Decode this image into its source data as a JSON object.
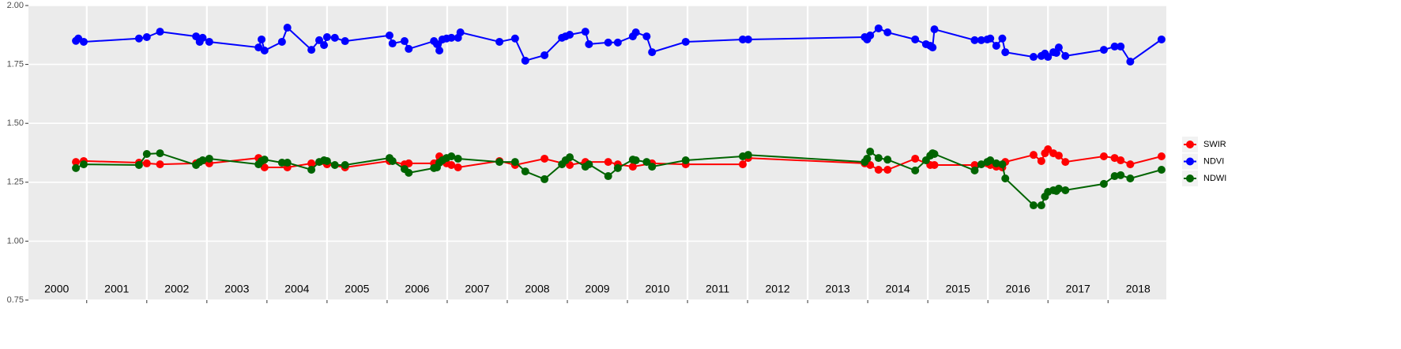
{
  "chart_data": {
    "type": "line",
    "xlim": [
      2000.03,
      2018.97
    ],
    "ylim": [
      0.75,
      2.0
    ],
    "yticks": [
      0.75,
      {
        "value": 1,
        "label": "1.00"
      },
      1.25,
      {
        "value": 1.5,
        "label": "1.50"
      },
      1.75,
      {
        "value": 2,
        "label": "2.00"
      }
    ],
    "xticks": [
      {
        "value": 2000.5,
        "label": "2000"
      },
      {
        "value": 2001.5,
        "label": "2001"
      },
      {
        "value": 2002.5,
        "label": "2002"
      },
      {
        "value": 2003.5,
        "label": "2003"
      },
      {
        "value": 2004.5,
        "label": "2004"
      },
      {
        "value": 2005.5,
        "label": "2005"
      },
      {
        "value": 2006.5,
        "label": "2006"
      },
      {
        "value": 2007.5,
        "label": "2007"
      },
      {
        "value": 2008.5,
        "label": "2008"
      },
      {
        "value": 2009.5,
        "label": "2009"
      },
      {
        "value": 2010.5,
        "label": "2010"
      },
      {
        "value": 2011.5,
        "label": "2011"
      },
      {
        "value": 2012.5,
        "label": "2012"
      },
      {
        "value": 2013.5,
        "label": "2013"
      },
      {
        "value": 2014.5,
        "label": "2014"
      },
      {
        "value": 2015.5,
        "label": "2015"
      },
      {
        "value": 2016.5,
        "label": "2016"
      },
      {
        "value": 2017.5,
        "label": "2017"
      },
      {
        "value": 2018.5,
        "label": "2018"
      }
    ],
    "x_gridlines": [
      2001,
      2002,
      2003,
      2004,
      2005,
      2006,
      2007,
      2008,
      2009,
      2010,
      2011,
      2012,
      2013,
      2014,
      2015,
      2016,
      2017,
      2018
    ],
    "grid": true,
    "legend": "right",
    "series": [
      {
        "name": "SWIR",
        "color": "#ff0000",
        "x": [
          2000.82,
          2000.95,
          2001.87,
          2002.0,
          2002.22,
          2002.82,
          2003.04,
          2003.86,
          2003.96,
          2004.34,
          2004.74,
          2005.0,
          2005.3,
          2006.04,
          2006.29,
          2006.36,
          2006.78,
          2006.87,
          2006.99,
          2007.07,
          2007.18,
          2007.87,
          2008.13,
          2008.62,
          2009.04,
          2009.3,
          2009.68,
          2009.84,
          2010.09,
          2010.41,
          2010.97,
          2011.92,
          2012.01,
          2013.95,
          2014.04,
          2014.18,
          2014.33,
          2014.79,
          2015.04,
          2015.11,
          2015.78,
          2015.99,
          2016.04,
          2016.14,
          2016.24,
          2016.29,
          2016.76,
          2016.89,
          2016.95,
          2017.0,
          2017.09,
          2017.18,
          2017.29,
          2017.93,
          2018.11,
          2018.21,
          2018.37,
          2018.89
        ],
        "values": [
          1.336,
          1.34,
          1.333,
          1.33,
          1.326,
          1.33,
          1.33,
          1.353,
          1.313,
          1.313,
          1.33,
          1.326,
          1.313,
          1.34,
          1.326,
          1.33,
          1.33,
          1.36,
          1.33,
          1.323,
          1.313,
          1.34,
          1.323,
          1.35,
          1.323,
          1.336,
          1.336,
          1.326,
          1.316,
          1.33,
          1.326,
          1.326,
          1.353,
          1.33,
          1.323,
          1.303,
          1.303,
          1.35,
          1.323,
          1.323,
          1.323,
          1.33,
          1.323,
          1.316,
          1.313,
          1.336,
          1.366,
          1.34,
          1.373,
          1.39,
          1.373,
          1.363,
          1.336,
          1.36,
          1.353,
          1.343,
          1.326,
          1.36
        ]
      },
      {
        "name": "NDVI",
        "color": "#0000ff",
        "x": [
          2000.82,
          2000.86,
          2000.95,
          2001.87,
          2002.0,
          2002.22,
          2002.82,
          2002.88,
          2002.93,
          2003.04,
          2003.86,
          2003.91,
          2003.96,
          2004.25,
          2004.34,
          2004.74,
          2004.87,
          2004.95,
          2005.0,
          2005.13,
          2005.3,
          2006.04,
          2006.09,
          2006.29,
          2006.36,
          2006.78,
          2006.83,
          2006.87,
          2006.92,
          2006.99,
          2007.07,
          2007.18,
          2007.22,
          2007.87,
          2008.13,
          2008.3,
          2008.62,
          2008.91,
          2008.97,
          2009.04,
          2009.3,
          2009.36,
          2009.68,
          2009.84,
          2010.09,
          2010.14,
          2010.32,
          2010.41,
          2010.97,
          2011.92,
          2012.01,
          2013.95,
          2013.99,
          2014.04,
          2014.18,
          2014.33,
          2014.79,
          2014.97,
          2015.04,
          2015.08,
          2015.11,
          2015.78,
          2015.89,
          2015.99,
          2016.04,
          2016.14,
          2016.24,
          2016.29,
          2016.76,
          2016.89,
          2016.95,
          2017.0,
          2017.09,
          2017.14,
          2017.18,
          2017.29,
          2017.93,
          2018.11,
          2018.21,
          2018.37,
          2018.89
        ],
        "values": [
          1.85,
          1.86,
          1.846,
          1.86,
          1.866,
          1.889,
          1.869,
          1.846,
          1.863,
          1.846,
          1.822,
          1.856,
          1.809,
          1.846,
          1.906,
          1.812,
          1.853,
          1.832,
          1.866,
          1.863,
          1.849,
          1.873,
          1.839,
          1.849,
          1.816,
          1.849,
          1.836,
          1.809,
          1.856,
          1.86,
          1.863,
          1.863,
          1.886,
          1.846,
          1.86,
          1.766,
          1.789,
          1.863,
          1.869,
          1.876,
          1.889,
          1.836,
          1.843,
          1.843,
          1.869,
          1.886,
          1.869,
          1.802,
          1.846,
          1.856,
          1.856,
          1.866,
          1.856,
          1.873,
          1.903,
          1.886,
          1.856,
          1.836,
          1.829,
          1.822,
          1.899,
          1.853,
          1.853,
          1.856,
          1.86,
          1.829,
          1.86,
          1.802,
          1.782,
          1.786,
          1.796,
          1.782,
          1.802,
          1.799,
          1.822,
          1.786,
          1.812,
          1.826,
          1.826,
          1.762,
          1.856
        ]
      },
      {
        "name": "NDWI",
        "color": "#006400",
        "x": [
          2000.82,
          2000.95,
          2001.87,
          2002.0,
          2002.22,
          2002.82,
          2002.88,
          2002.93,
          2003.04,
          2003.86,
          2003.91,
          2003.96,
          2004.25,
          2004.34,
          2004.74,
          2004.87,
          2004.95,
          2005.0,
          2005.13,
          2005.3,
          2006.04,
          2006.09,
          2006.29,
          2006.36,
          2006.78,
          2006.83,
          2006.87,
          2006.92,
          2006.99,
          2007.07,
          2007.18,
          2007.87,
          2008.13,
          2008.3,
          2008.62,
          2008.91,
          2008.97,
          2009.04,
          2009.3,
          2009.36,
          2009.68,
          2009.84,
          2010.09,
          2010.14,
          2010.32,
          2010.41,
          2010.97,
          2011.92,
          2012.01,
          2013.95,
          2013.99,
          2014.04,
          2014.18,
          2014.33,
          2014.79,
          2014.97,
          2015.04,
          2015.08,
          2015.11,
          2015.78,
          2015.89,
          2015.99,
          2016.04,
          2016.14,
          2016.24,
          2016.29,
          2016.76,
          2016.89,
          2016.95,
          2017.0,
          2017.09,
          2017.14,
          2017.18,
          2017.29,
          2017.93,
          2018.11,
          2018.21,
          2018.37,
          2018.89
        ],
        "values": [
          1.31,
          1.326,
          1.323,
          1.37,
          1.373,
          1.323,
          1.336,
          1.343,
          1.35,
          1.326,
          1.34,
          1.346,
          1.333,
          1.333,
          1.303,
          1.336,
          1.343,
          1.34,
          1.323,
          1.323,
          1.353,
          1.34,
          1.306,
          1.29,
          1.31,
          1.313,
          1.333,
          1.343,
          1.353,
          1.36,
          1.35,
          1.336,
          1.336,
          1.296,
          1.263,
          1.326,
          1.343,
          1.356,
          1.316,
          1.326,
          1.276,
          1.31,
          1.346,
          1.343,
          1.336,
          1.316,
          1.343,
          1.36,
          1.366,
          1.336,
          1.35,
          1.38,
          1.353,
          1.346,
          1.3,
          1.343,
          1.363,
          1.373,
          1.37,
          1.3,
          1.326,
          1.336,
          1.343,
          1.33,
          1.326,
          1.266,
          1.152,
          1.152,
          1.189,
          1.209,
          1.216,
          1.213,
          1.223,
          1.216,
          1.243,
          1.276,
          1.28,
          1.266,
          1.303
        ]
      }
    ]
  }
}
